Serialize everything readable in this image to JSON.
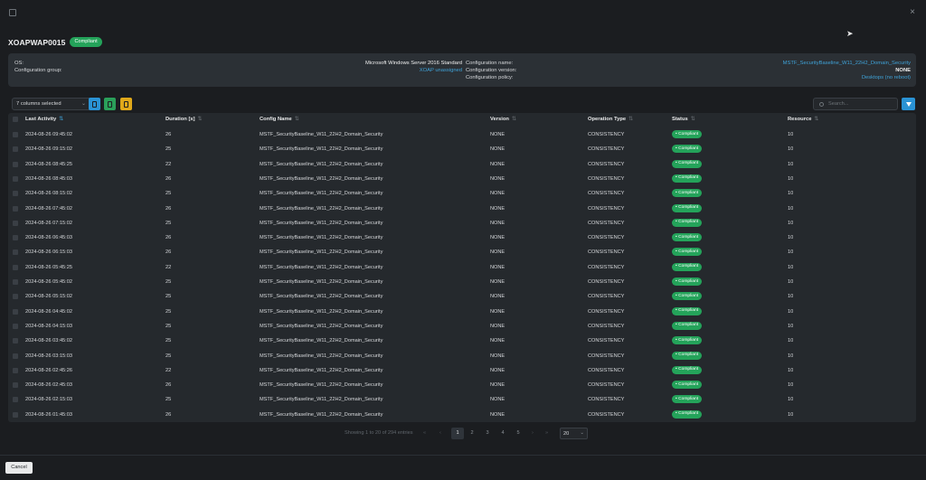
{
  "window": {
    "expand_icon": "expand-icon",
    "close_label": "×"
  },
  "header": {
    "title": "XOAPWAP0015",
    "status": "Compliant"
  },
  "info": {
    "os_label": "OS:",
    "os_value": "Microsoft Windows Server 2016 Standard",
    "group_label": "Configuration group:",
    "group_value": "XOAP unassigned",
    "config_name_label": "Configuration name:",
    "config_name_value": "MSTF_SecurityBaseline_W11_22H2_Domain_Security",
    "config_version_label": "Configuration version:",
    "config_version_value": "NONE",
    "config_policy_label": "Configuration policy:",
    "config_policy_value": "Desktops (no reboot)"
  },
  "toolbar": {
    "columns_selected": "7 columns selected",
    "search_placeholder": "Search..."
  },
  "columns": {
    "last_activity": "Last Activity",
    "duration": "Duration [s]",
    "config_name": "Config Name",
    "version": "Version",
    "operation_type": "Operation Type",
    "status": "Status",
    "resource": "Resource"
  },
  "rows": [
    {
      "last_activity": "2024-08-26 09:45:02",
      "duration": "26",
      "config_name": "MSTF_SecurityBaseline_W11_22H2_Domain_Security",
      "version": "NONE",
      "operation_type": "CONSISTENCY",
      "status": "• Compliant",
      "resource": "10"
    },
    {
      "last_activity": "2024-08-26 09:15:02",
      "duration": "25",
      "config_name": "MSTF_SecurityBaseline_W11_22H2_Domain_Security",
      "version": "NONE",
      "operation_type": "CONSISTENCY",
      "status": "• Compliant",
      "resource": "10"
    },
    {
      "last_activity": "2024-08-26 08:45:25",
      "duration": "22",
      "config_name": "MSTF_SecurityBaseline_W11_22H2_Domain_Security",
      "version": "NONE",
      "operation_type": "CONSISTENCY",
      "status": "• Compliant",
      "resource": "10"
    },
    {
      "last_activity": "2024-08-26 08:45:03",
      "duration": "26",
      "config_name": "MSTF_SecurityBaseline_W11_22H2_Domain_Security",
      "version": "NONE",
      "operation_type": "CONSISTENCY",
      "status": "• Compliant",
      "resource": "10"
    },
    {
      "last_activity": "2024-08-26 08:15:02",
      "duration": "25",
      "config_name": "MSTF_SecurityBaseline_W11_22H2_Domain_Security",
      "version": "NONE",
      "operation_type": "CONSISTENCY",
      "status": "• Compliant",
      "resource": "10"
    },
    {
      "last_activity": "2024-08-26 07:45:02",
      "duration": "26",
      "config_name": "MSTF_SecurityBaseline_W11_22H2_Domain_Security",
      "version": "NONE",
      "operation_type": "CONSISTENCY",
      "status": "• Compliant",
      "resource": "10"
    },
    {
      "last_activity": "2024-08-26 07:15:02",
      "duration": "25",
      "config_name": "MSTF_SecurityBaseline_W11_22H2_Domain_Security",
      "version": "NONE",
      "operation_type": "CONSISTENCY",
      "status": "• Compliant",
      "resource": "10"
    },
    {
      "last_activity": "2024-08-26 06:45:03",
      "duration": "26",
      "config_name": "MSTF_SecurityBaseline_W11_22H2_Domain_Security",
      "version": "NONE",
      "operation_type": "CONSISTENCY",
      "status": "• Compliant",
      "resource": "10"
    },
    {
      "last_activity": "2024-08-26 06:15:03",
      "duration": "26",
      "config_name": "MSTF_SecurityBaseline_W11_22H2_Domain_Security",
      "version": "NONE",
      "operation_type": "CONSISTENCY",
      "status": "• Compliant",
      "resource": "10"
    },
    {
      "last_activity": "2024-08-26 05:45:25",
      "duration": "22",
      "config_name": "MSTF_SecurityBaseline_W11_22H2_Domain_Security",
      "version": "NONE",
      "operation_type": "CONSISTENCY",
      "status": "• Compliant",
      "resource": "10"
    },
    {
      "last_activity": "2024-08-26 05:45:02",
      "duration": "25",
      "config_name": "MSTF_SecurityBaseline_W11_22H2_Domain_Security",
      "version": "NONE",
      "operation_type": "CONSISTENCY",
      "status": "• Compliant",
      "resource": "10"
    },
    {
      "last_activity": "2024-08-26 05:15:02",
      "duration": "25",
      "config_name": "MSTF_SecurityBaseline_W11_22H2_Domain_Security",
      "version": "NONE",
      "operation_type": "CONSISTENCY",
      "status": "• Compliant",
      "resource": "10"
    },
    {
      "last_activity": "2024-08-26 04:45:02",
      "duration": "25",
      "config_name": "MSTF_SecurityBaseline_W11_22H2_Domain_Security",
      "version": "NONE",
      "operation_type": "CONSISTENCY",
      "status": "• Compliant",
      "resource": "10"
    },
    {
      "last_activity": "2024-08-26 04:15:03",
      "duration": "25",
      "config_name": "MSTF_SecurityBaseline_W11_22H2_Domain_Security",
      "version": "NONE",
      "operation_type": "CONSISTENCY",
      "status": "• Compliant",
      "resource": "10"
    },
    {
      "last_activity": "2024-08-26 03:45:02",
      "duration": "25",
      "config_name": "MSTF_SecurityBaseline_W11_22H2_Domain_Security",
      "version": "NONE",
      "operation_type": "CONSISTENCY",
      "status": "• Compliant",
      "resource": "10"
    },
    {
      "last_activity": "2024-08-26 03:15:03",
      "duration": "25",
      "config_name": "MSTF_SecurityBaseline_W11_22H2_Domain_Security",
      "version": "NONE",
      "operation_type": "CONSISTENCY",
      "status": "• Compliant",
      "resource": "10"
    },
    {
      "last_activity": "2024-08-26 02:45:26",
      "duration": "22",
      "config_name": "MSTF_SecurityBaseline_W11_22H2_Domain_Security",
      "version": "NONE",
      "operation_type": "CONSISTENCY",
      "status": "• Compliant",
      "resource": "10"
    },
    {
      "last_activity": "2024-08-26 02:45:03",
      "duration": "26",
      "config_name": "MSTF_SecurityBaseline_W11_22H2_Domain_Security",
      "version": "NONE",
      "operation_type": "CONSISTENCY",
      "status": "• Compliant",
      "resource": "10"
    },
    {
      "last_activity": "2024-08-26 02:15:03",
      "duration": "25",
      "config_name": "MSTF_SecurityBaseline_W11_22H2_Domain_Security",
      "version": "NONE",
      "operation_type": "CONSISTENCY",
      "status": "• Compliant",
      "resource": "10"
    },
    {
      "last_activity": "2024-08-26 01:45:03",
      "duration": "26",
      "config_name": "MSTF_SecurityBaseline_W11_22H2_Domain_Security",
      "version": "NONE",
      "operation_type": "CONSISTENCY",
      "status": "• Compliant",
      "resource": "10"
    }
  ],
  "pagination": {
    "info": "Showing 1 to 20 of 294 entries",
    "first": "«",
    "prev": "‹",
    "pages": [
      "1",
      "2",
      "3",
      "4",
      "5"
    ],
    "next": "›",
    "last": "»",
    "page_size": "20"
  },
  "footer": {
    "cancel_label": "Cancel"
  },
  "colors": {
    "accent": "#2a93d5",
    "success": "#24a35a",
    "link": "#3fa3d9",
    "excel": "#2aa05a",
    "pdf": "#e0a81a"
  }
}
